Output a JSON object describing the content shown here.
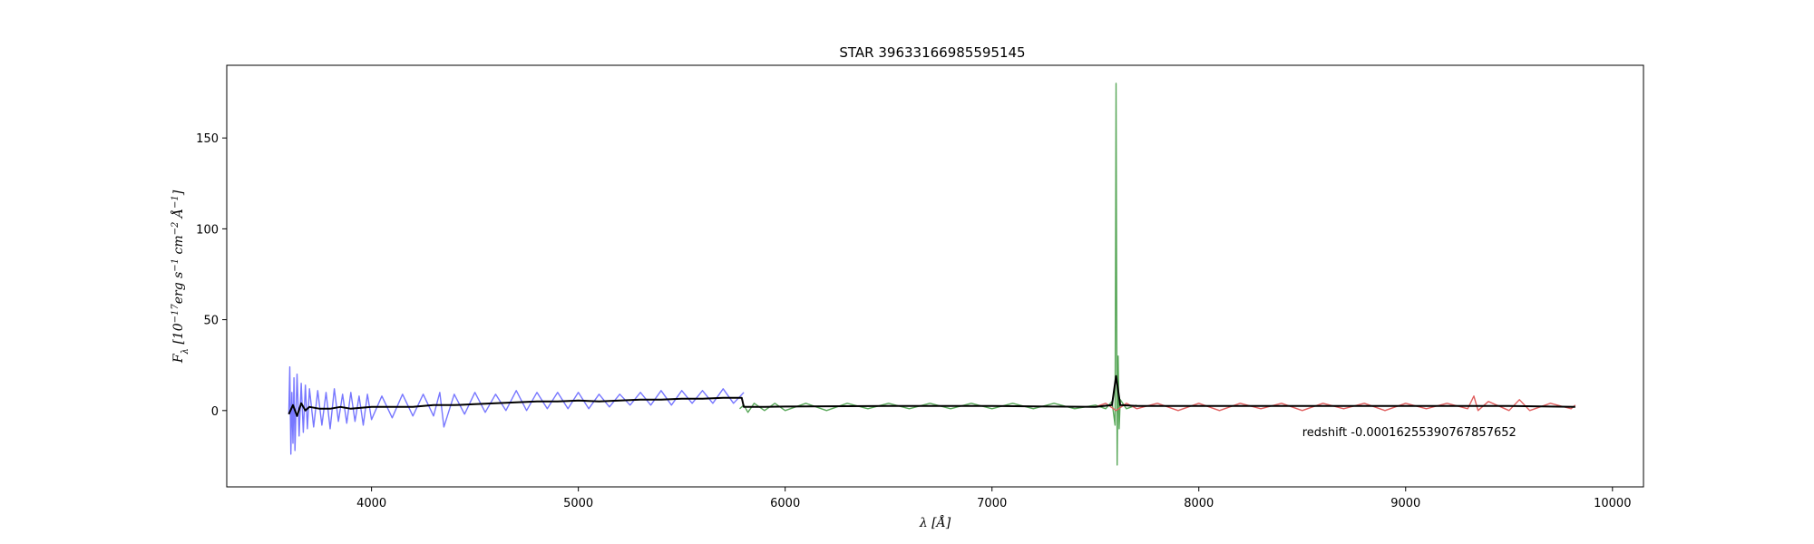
{
  "chart_data": {
    "type": "line",
    "title": "STAR 39633166985595145",
    "xlabel": "λ [Å]",
    "ylabel_html": "F<tspan baseline-shift='sub' font-size='10'>λ</tspan> [10<tspan baseline-shift='super' font-size='10'>−17</tspan>erg s<tspan baseline-shift='super' font-size='10'>−1</tspan> cm<tspan baseline-shift='super' font-size='10'>−2</tspan> Å<tspan baseline-shift='super' font-size='10'>−1</tspan>]",
    "xlim": [
      3300,
      10150
    ],
    "ylim": [
      -42,
      190
    ],
    "x_ticks": [
      4000,
      5000,
      6000,
      7000,
      8000,
      9000,
      10000
    ],
    "y_ticks": [
      0,
      50,
      100,
      150
    ],
    "grid": false,
    "annotation": {
      "text": "redshift -0.00016255390767857652",
      "x": 8500,
      "y": -12
    },
    "series": [
      {
        "color": "#7777ff",
        "range": [
          3600,
          5800
        ],
        "points": [
          [
            3600,
            -2
          ],
          [
            3605,
            24
          ],
          [
            3610,
            -24
          ],
          [
            3615,
            10
          ],
          [
            3620,
            -18
          ],
          [
            3625,
            18
          ],
          [
            3630,
            -22
          ],
          [
            3640,
            20
          ],
          [
            3650,
            -14
          ],
          [
            3660,
            15
          ],
          [
            3670,
            -12
          ],
          [
            3680,
            14
          ],
          [
            3690,
            -10
          ],
          [
            3700,
            12
          ],
          [
            3720,
            -9
          ],
          [
            3740,
            11
          ],
          [
            3760,
            -8
          ],
          [
            3780,
            10
          ],
          [
            3800,
            -10
          ],
          [
            3820,
            12
          ],
          [
            3840,
            -6
          ],
          [
            3860,
            9
          ],
          [
            3880,
            -7
          ],
          [
            3900,
            10
          ],
          [
            3920,
            -6
          ],
          [
            3940,
            8
          ],
          [
            3960,
            -8
          ],
          [
            3980,
            9
          ],
          [
            4000,
            -5
          ],
          [
            4050,
            8
          ],
          [
            4100,
            -4
          ],
          [
            4150,
            9
          ],
          [
            4200,
            -3
          ],
          [
            4250,
            9
          ],
          [
            4300,
            -3
          ],
          [
            4330,
            10
          ],
          [
            4350,
            -9
          ],
          [
            4400,
            9
          ],
          [
            4450,
            -2
          ],
          [
            4500,
            10
          ],
          [
            4550,
            -1
          ],
          [
            4600,
            9
          ],
          [
            4650,
            0
          ],
          [
            4700,
            11
          ],
          [
            4750,
            0
          ],
          [
            4800,
            10
          ],
          [
            4850,
            1
          ],
          [
            4900,
            10
          ],
          [
            4950,
            1
          ],
          [
            5000,
            10
          ],
          [
            5050,
            1
          ],
          [
            5100,
            9
          ],
          [
            5150,
            2
          ],
          [
            5200,
            9
          ],
          [
            5250,
            3
          ],
          [
            5300,
            10
          ],
          [
            5350,
            3
          ],
          [
            5400,
            11
          ],
          [
            5450,
            3
          ],
          [
            5500,
            11
          ],
          [
            5550,
            4
          ],
          [
            5600,
            11
          ],
          [
            5650,
            4
          ],
          [
            5700,
            12
          ],
          [
            5750,
            4
          ],
          [
            5800,
            10
          ]
        ]
      },
      {
        "color": "#5aa85a",
        "range": [
          5780,
          7700
        ],
        "points": [
          [
            5780,
            1
          ],
          [
            5800,
            3
          ],
          [
            5820,
            -1
          ],
          [
            5850,
            4
          ],
          [
            5900,
            0
          ],
          [
            5950,
            4
          ],
          [
            6000,
            0
          ],
          [
            6100,
            4
          ],
          [
            6200,
            0
          ],
          [
            6300,
            4
          ],
          [
            6400,
            1
          ],
          [
            6500,
            4
          ],
          [
            6600,
            1
          ],
          [
            6700,
            4
          ],
          [
            6800,
            1
          ],
          [
            6900,
            4
          ],
          [
            7000,
            1
          ],
          [
            7100,
            4
          ],
          [
            7200,
            1
          ],
          [
            7300,
            4
          ],
          [
            7400,
            1
          ],
          [
            7500,
            3
          ],
          [
            7550,
            1
          ],
          [
            7580,
            5
          ],
          [
            7595,
            -8
          ],
          [
            7600,
            180
          ],
          [
            7605,
            -30
          ],
          [
            7610,
            30
          ],
          [
            7615,
            -10
          ],
          [
            7620,
            6
          ],
          [
            7650,
            1
          ],
          [
            7700,
            3
          ]
        ]
      },
      {
        "color": "#e06060",
        "range": [
          7500,
          9820
        ],
        "points": [
          [
            7500,
            2
          ],
          [
            7550,
            4
          ],
          [
            7600,
            0
          ],
          [
            7650,
            4
          ],
          [
            7700,
            1
          ],
          [
            7800,
            4
          ],
          [
            7900,
            0
          ],
          [
            8000,
            4
          ],
          [
            8100,
            0
          ],
          [
            8200,
            4
          ],
          [
            8300,
            1
          ],
          [
            8400,
            4
          ],
          [
            8500,
            0
          ],
          [
            8600,
            4
          ],
          [
            8700,
            1
          ],
          [
            8800,
            4
          ],
          [
            8900,
            0
          ],
          [
            9000,
            4
          ],
          [
            9100,
            1
          ],
          [
            9200,
            4
          ],
          [
            9300,
            1
          ],
          [
            9330,
            8
          ],
          [
            9350,
            0
          ],
          [
            9400,
            5
          ],
          [
            9500,
            0
          ],
          [
            9550,
            6
          ],
          [
            9600,
            0
          ],
          [
            9700,
            4
          ],
          [
            9800,
            1
          ],
          [
            9820,
            3
          ]
        ]
      },
      {
        "color": "#000000",
        "range": [
          3600,
          9820
        ],
        "points": [
          [
            3600,
            -2
          ],
          [
            3620,
            3
          ],
          [
            3640,
            -3
          ],
          [
            3660,
            4
          ],
          [
            3680,
            0
          ],
          [
            3700,
            2
          ],
          [
            3750,
            1
          ],
          [
            3800,
            1
          ],
          [
            3850,
            2
          ],
          [
            3900,
            1
          ],
          [
            4000,
            2
          ],
          [
            4100,
            2
          ],
          [
            4200,
            2
          ],
          [
            4300,
            3
          ],
          [
            4400,
            3
          ],
          [
            4500,
            3.5
          ],
          [
            4600,
            4
          ],
          [
            4700,
            4.5
          ],
          [
            4800,
            5
          ],
          [
            4900,
            5
          ],
          [
            5000,
            5.5
          ],
          [
            5100,
            5
          ],
          [
            5200,
            5.5
          ],
          [
            5300,
            6
          ],
          [
            5400,
            6
          ],
          [
            5500,
            6.5
          ],
          [
            5600,
            6.5
          ],
          [
            5700,
            7
          ],
          [
            5790,
            7
          ],
          [
            5800,
            2
          ],
          [
            5900,
            2
          ],
          [
            6000,
            2.2
          ],
          [
            6500,
            2.5
          ],
          [
            7000,
            2.5
          ],
          [
            7500,
            2
          ],
          [
            7580,
            3
          ],
          [
            7600,
            19
          ],
          [
            7620,
            3
          ],
          [
            7700,
            2.5
          ],
          [
            8000,
            2.5
          ],
          [
            8500,
            2.5
          ],
          [
            9000,
            2.5
          ],
          [
            9500,
            2.5
          ],
          [
            9820,
            2
          ]
        ]
      }
    ]
  }
}
